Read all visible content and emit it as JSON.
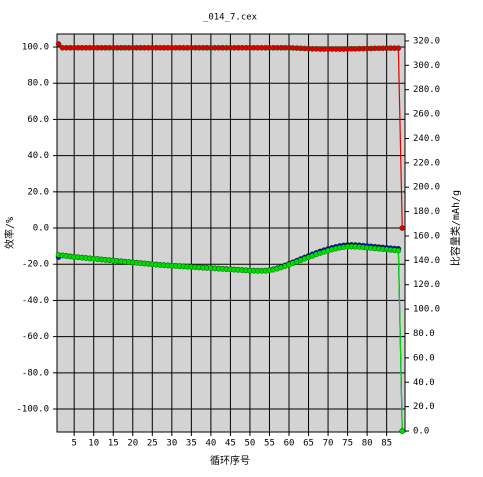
{
  "chart_data": {
    "type": "line",
    "title": "_014_7.cex",
    "x_label": "循环序号",
    "y_label": "效率/%",
    "y2_label": "比容量类/mAh/g",
    "x": [
      1,
      2,
      3,
      4,
      5,
      6,
      7,
      8,
      9,
      10,
      11,
      12,
      13,
      14,
      15,
      16,
      17,
      18,
      19,
      20,
      21,
      22,
      23,
      24,
      25,
      26,
      27,
      28,
      29,
      30,
      31,
      32,
      33,
      34,
      35,
      36,
      37,
      38,
      39,
      40,
      41,
      42,
      43,
      44,
      45,
      46,
      47,
      48,
      49,
      50,
      51,
      52,
      53,
      54,
      55,
      56,
      57,
      58,
      59,
      60,
      61,
      62,
      63,
      64,
      65,
      66,
      67,
      68,
      69,
      70,
      71,
      72,
      73,
      74,
      75,
      76,
      77,
      78,
      79,
      80,
      81,
      82,
      83,
      84,
      85,
      86,
      87,
      88,
      89
    ],
    "xlim": [
      0.6,
      89.7
    ],
    "xticks": [
      5,
      10,
      15,
      20,
      25,
      30,
      35,
      40,
      45,
      50,
      55,
      60,
      65,
      70,
      75,
      80,
      85
    ],
    "ylim": [
      -112.7,
      107.2
    ],
    "yticks": [
      {
        "value": -100,
        "label": "-100.0"
      },
      {
        "value": -80,
        "label": "-80.0"
      },
      {
        "value": -60,
        "label": "-60.0"
      },
      {
        "value": -40,
        "label": "-40.0"
      },
      {
        "value": -20,
        "label": "-20.0"
      },
      {
        "value": 0,
        "label": "0.0"
      },
      {
        "value": 20,
        "label": "20.0"
      },
      {
        "value": 40,
        "label": "40.0"
      },
      {
        "value": 60,
        "label": "60.0"
      },
      {
        "value": 80,
        "label": "80.0"
      },
      {
        "value": 100,
        "label": "100.0"
      }
    ],
    "y2lim": [
      -0.8,
      325.7
    ],
    "y2ticks": [
      {
        "value": 0,
        "label": "0.0"
      },
      {
        "value": 20,
        "label": "20.0"
      },
      {
        "value": 40,
        "label": "40.0"
      },
      {
        "value": 60,
        "label": "60.0"
      },
      {
        "value": 80,
        "label": "80.0"
      },
      {
        "value": 100,
        "label": "100.0"
      },
      {
        "value": 120,
        "label": "120.0"
      },
      {
        "value": 140,
        "label": "140.0"
      },
      {
        "value": 160,
        "label": "160.0"
      },
      {
        "value": 180,
        "label": "180.0"
      },
      {
        "value": 200,
        "label": "200.0"
      },
      {
        "value": 220,
        "label": "220.0"
      },
      {
        "value": 240,
        "label": "240.0"
      },
      {
        "value": 260,
        "label": "260.0"
      },
      {
        "value": 280,
        "label": "280.0"
      },
      {
        "value": 300,
        "label": "300.0"
      },
      {
        "value": 320,
        "label": "320.0"
      }
    ],
    "grid": true,
    "series": [
      {
        "color": "#0000cc",
        "axis": "y2",
        "values": [
          142.7,
          144.1,
          143.7,
          143.3,
          142.9,
          142.6,
          142.3,
          142.0,
          141.7,
          141.4,
          141.1,
          140.8,
          140.5,
          140.2,
          139.9,
          139.6,
          139.3,
          139.0,
          138.7,
          138.4,
          138.1,
          137.8,
          137.5,
          137.2,
          136.9,
          136.6,
          136.3,
          136.1,
          135.9,
          135.7,
          135.5,
          135.3,
          135.1,
          134.9,
          134.7,
          134.5,
          134.3,
          134.1,
          133.9,
          133.7,
          133.5,
          133.3,
          133.1,
          132.9,
          132.7,
          132.5,
          132.3,
          132.1,
          131.9,
          131.7,
          131.6,
          131.5,
          131.5,
          131.6,
          132.0,
          132.7,
          133.6,
          134.7,
          135.9,
          137.2,
          138.5,
          139.8,
          141.1,
          142.4,
          143.7,
          145.0,
          146.2,
          147.4,
          148.4,
          149.4,
          150.3,
          151.1,
          151.8,
          152.3,
          152.6,
          152.7,
          152.6,
          152.4,
          152.1,
          151.8,
          151.5,
          151.2,
          150.9,
          150.6,
          150.3,
          150.0,
          149.7,
          149.5,
          0
        ]
      },
      {
        "color": "#00dd00",
        "axis": "y2",
        "values": [
          144.4,
          144.0,
          143.6,
          143.2,
          142.8,
          142.5,
          142.2,
          141.9,
          141.6,
          141.3,
          141.0,
          140.7,
          140.4,
          140.1,
          139.8,
          139.5,
          139.2,
          138.9,
          138.6,
          138.3,
          138.0,
          137.7,
          137.4,
          137.1,
          136.8,
          136.5,
          136.2,
          136.0,
          135.8,
          135.6,
          135.4,
          135.2,
          135.0,
          134.8,
          134.6,
          134.4,
          134.2,
          134.0,
          133.8,
          133.6,
          133.4,
          133.2,
          133.0,
          132.8,
          132.6,
          132.4,
          132.2,
          132.0,
          131.8,
          131.6,
          131.5,
          131.4,
          131.4,
          131.5,
          131.8,
          132.4,
          133.2,
          134.2,
          135.3,
          136.5,
          137.7,
          138.9,
          140.1,
          141.3,
          142.5,
          143.7,
          144.9,
          146.0,
          147.0,
          148.0,
          148.9,
          149.7,
          150.4,
          150.9,
          151.2,
          151.3,
          151.2,
          151.0,
          150.7,
          150.4,
          150.1,
          149.8,
          149.5,
          149.2,
          148.9,
          148.6,
          148.3,
          148.0,
          0
        ]
      },
      {
        "color": "#dd0000",
        "axis": "y",
        "values": [
          101.7,
          99.6,
          99.6,
          99.6,
          99.6,
          99.6,
          99.6,
          99.6,
          99.6,
          99.6,
          99.6,
          99.6,
          99.6,
          99.6,
          99.6,
          99.6,
          99.6,
          99.6,
          99.6,
          99.6,
          99.6,
          99.6,
          99.6,
          99.6,
          99.6,
          99.6,
          99.6,
          99.6,
          99.6,
          99.6,
          99.6,
          99.6,
          99.6,
          99.6,
          99.6,
          99.6,
          99.6,
          99.6,
          99.6,
          99.6,
          99.6,
          99.6,
          99.6,
          99.6,
          99.6,
          99.6,
          99.6,
          99.6,
          99.6,
          99.6,
          99.6,
          99.6,
          99.6,
          99.6,
          99.6,
          99.6,
          99.6,
          99.6,
          99.6,
          99.6,
          99.5,
          99.4,
          99.3,
          99.2,
          99.1,
          99.0,
          99.0,
          98.9,
          98.9,
          98.9,
          98.9,
          98.9,
          98.9,
          98.9,
          98.9,
          99.0,
          99.0,
          99.1,
          99.1,
          99.2,
          99.2,
          99.3,
          99.3,
          99.3,
          99.4,
          99.4,
          99.4,
          99.4,
          0
        ]
      }
    ]
  }
}
